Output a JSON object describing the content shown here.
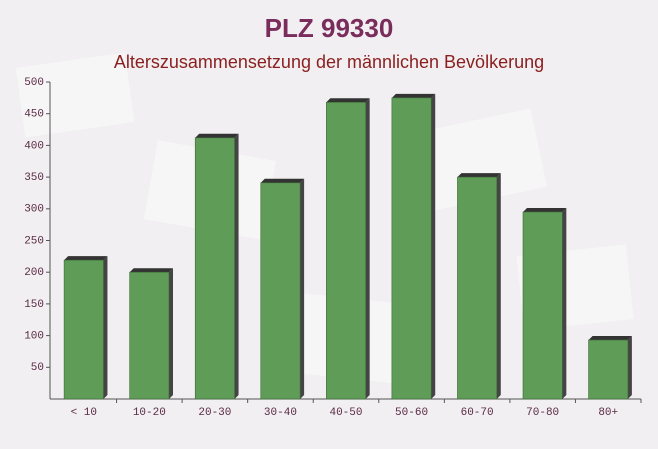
{
  "chart_data": {
    "type": "bar",
    "title": "PLZ 99330",
    "subtitle": "Alterszusammensetzung der männlichen Bevölkerung",
    "categories": [
      "< 10",
      "10-20",
      "20-30",
      "30-40",
      "40-50",
      "50-60",
      "60-70",
      "70-80",
      "80+"
    ],
    "values": [
      219,
      200,
      412,
      341,
      468,
      475,
      350,
      295,
      93
    ],
    "color": "#5e9c58",
    "ylim": [
      0,
      500
    ],
    "yticks": [
      50,
      100,
      150,
      200,
      250,
      300,
      350,
      400,
      450,
      500
    ]
  }
}
